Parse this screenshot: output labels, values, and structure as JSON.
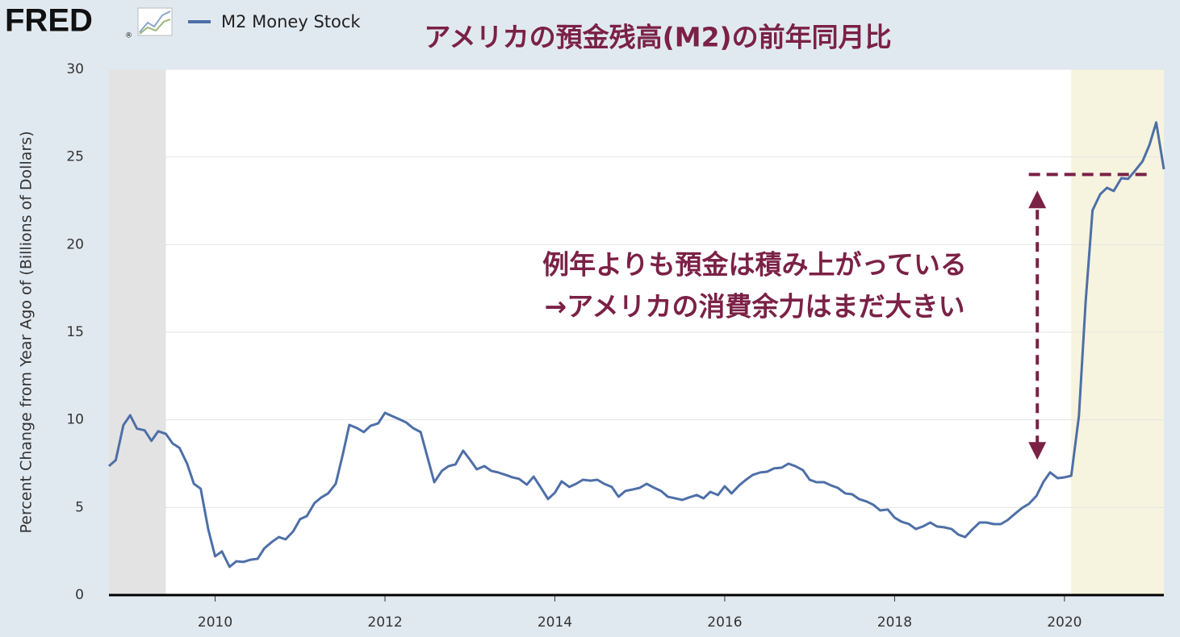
{
  "chart_data": {
    "type": "line",
    "logo": "FRED",
    "logo_mark": "®",
    "title": "アメリカの預金残高(M2)の前年同月比",
    "ylabel": "Percent Change from Year Ago of (Billions of Dollars)",
    "x": [
      2008.75,
      2008.83,
      2008.92,
      2009.0,
      2009.08,
      2009.17,
      2009.25,
      2009.33,
      2009.42,
      2009.5,
      2009.58,
      2009.67,
      2009.75,
      2009.83,
      2009.92,
      2010.0,
      2010.08,
      2010.17,
      2010.25,
      2010.33,
      2010.42,
      2010.5,
      2010.58,
      2010.67,
      2010.75,
      2010.83,
      2010.92,
      2011.0,
      2011.08,
      2011.17,
      2011.25,
      2011.33,
      2011.42,
      2011.5,
      2011.58,
      2011.67,
      2011.75,
      2011.83,
      2011.92,
      2012.0,
      2012.08,
      2012.17,
      2012.25,
      2012.33,
      2012.42,
      2012.5,
      2012.58,
      2012.67,
      2012.75,
      2012.83,
      2012.92,
      2013.0,
      2013.08,
      2013.17,
      2013.25,
      2013.33,
      2013.42,
      2013.5,
      2013.58,
      2013.67,
      2013.75,
      2013.83,
      2013.92,
      2014.0,
      2014.08,
      2014.17,
      2014.25,
      2014.33,
      2014.42,
      2014.5,
      2014.58,
      2014.67,
      2014.75,
      2014.83,
      2014.92,
      2015.0,
      2015.08,
      2015.17,
      2015.25,
      2015.33,
      2015.42,
      2015.5,
      2015.58,
      2015.67,
      2015.75,
      2015.83,
      2015.92,
      2016.0,
      2016.08,
      2016.17,
      2016.25,
      2016.33,
      2016.42,
      2016.5,
      2016.58,
      2016.67,
      2016.75,
      2016.83,
      2016.92,
      2017.0,
      2017.08,
      2017.17,
      2017.25,
      2017.33,
      2017.42,
      2017.5,
      2017.58,
      2017.67,
      2017.75,
      2017.83,
      2017.92,
      2018.0,
      2018.08,
      2018.17,
      2018.25,
      2018.33,
      2018.42,
      2018.5,
      2018.58,
      2018.67,
      2018.75,
      2018.83,
      2018.92,
      2019.0,
      2019.08,
      2019.17,
      2019.25,
      2019.33,
      2019.42,
      2019.5,
      2019.58,
      2019.67,
      2019.75,
      2019.83,
      2019.92,
      2020.0,
      2020.08,
      2020.17,
      2020.25,
      2020.33,
      2020.42,
      2020.5,
      2020.58,
      2020.67,
      2020.75,
      2020.83,
      2020.92,
      2021.0,
      2021.08,
      2021.17
    ],
    "series": [
      {
        "name": "M2 Money Stock",
        "color": "#4e6fa7",
        "values": [
          7.36,
          7.7,
          9.7,
          10.26,
          9.5,
          9.4,
          8.8,
          9.35,
          9.2,
          8.65,
          8.4,
          7.5,
          6.35,
          6.07,
          3.73,
          2.21,
          2.49,
          1.61,
          1.93,
          1.89,
          2.02,
          2.07,
          2.67,
          3.04,
          3.31,
          3.18,
          3.64,
          4.33,
          4.51,
          5.25,
          5.57,
          5.8,
          6.35,
          7.96,
          9.71,
          9.53,
          9.3,
          9.66,
          9.8,
          10.4,
          10.22,
          10.03,
          9.85,
          9.53,
          9.3,
          7.87,
          6.44,
          7.09,
          7.36,
          7.46,
          8.24,
          7.73,
          7.18,
          7.36,
          7.09,
          7.0,
          6.86,
          6.72,
          6.63,
          6.3,
          6.76,
          6.17,
          5.48,
          5.84,
          6.49,
          6.17,
          6.35,
          6.58,
          6.53,
          6.58,
          6.35,
          6.17,
          5.61,
          5.94,
          6.03,
          6.12,
          6.35,
          6.12,
          5.94,
          5.61,
          5.52,
          5.43,
          5.57,
          5.71,
          5.52,
          5.89,
          5.71,
          6.21,
          5.8,
          6.26,
          6.58,
          6.86,
          7.0,
          7.04,
          7.23,
          7.27,
          7.5,
          7.36,
          7.13,
          6.58,
          6.44,
          6.44,
          6.26,
          6.12,
          5.8,
          5.75,
          5.48,
          5.34,
          5.15,
          4.83,
          4.88,
          4.42,
          4.19,
          4.05,
          3.77,
          3.91,
          4.14,
          3.91,
          3.87,
          3.77,
          3.45,
          3.31,
          3.77,
          4.14,
          4.14,
          4.05,
          4.05,
          4.28,
          4.65,
          4.97,
          5.2,
          5.66,
          6.44,
          7.0,
          6.67,
          6.72,
          6.81,
          10.22,
          16.8,
          21.95,
          22.87,
          23.24,
          23.06,
          23.79,
          23.75,
          24.21,
          24.76,
          25.68,
          26.97,
          24.3
        ]
      }
    ],
    "xlim": [
      2008.75,
      2021.17
    ],
    "xticks": [
      2010,
      2012,
      2014,
      2016,
      2018,
      2020
    ],
    "ylim": [
      0,
      30
    ],
    "yticks": [
      0,
      5,
      10,
      15,
      20,
      25,
      30
    ],
    "grid": true,
    "shaded_regions": [
      {
        "range": [
          2008.75,
          2009.42
        ],
        "color": "#e3e3e3"
      },
      {
        "range": [
          2020.08,
          2021.17
        ],
        "color": "#f6f4de"
      }
    ],
    "annotation": {
      "color": "#7b2146",
      "lines": [
        "例年よりも預金は積み上がっている",
        "→アメリカの消費余力はまだ大きい"
      ],
      "hline_value": 24,
      "hline_from_x": 2019.58,
      "arrow": {
        "x": 2019.68,
        "from": 7.9,
        "to": 22.9
      }
    }
  }
}
